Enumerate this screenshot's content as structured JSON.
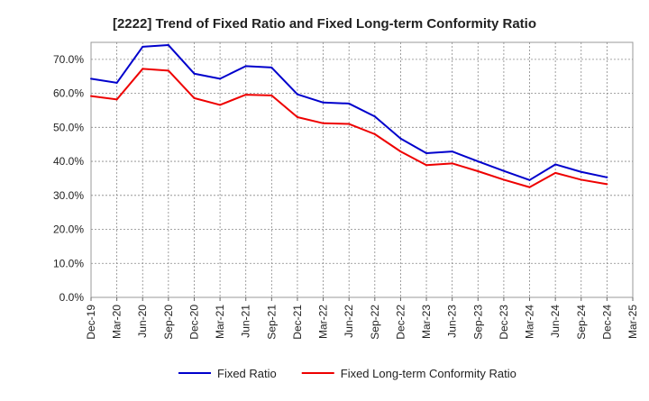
{
  "chart_data": {
    "type": "line",
    "title": "[2222]  Trend of Fixed Ratio and Fixed Long-term Conformity Ratio",
    "xlabel": "",
    "ylabel": "",
    "categories": [
      "Dec-19",
      "Mar-20",
      "Jun-20",
      "Sep-20",
      "Dec-20",
      "Mar-21",
      "Jun-21",
      "Sep-21",
      "Dec-21",
      "Mar-22",
      "Jun-22",
      "Sep-22",
      "Dec-22",
      "Mar-23",
      "Jun-23",
      "Sep-23",
      "Dec-23",
      "Mar-24",
      "Jun-24",
      "Sep-24",
      "Dec-24",
      "Mar-25"
    ],
    "ylim": [
      0,
      75
    ],
    "y_ticks": [
      0,
      10,
      20,
      30,
      40,
      50,
      60,
      70
    ],
    "y_tick_labels": [
      "0.0%",
      "10.0%",
      "20.0%",
      "30.0%",
      "40.0%",
      "50.0%",
      "60.0%",
      "70.0%"
    ],
    "grid": true,
    "legend_position": "bottom",
    "series": [
      {
        "name": "Fixed Ratio",
        "color": "#0000cc",
        "values": [
          64.3,
          63.1,
          73.7,
          74.2,
          65.8,
          64.3,
          68.0,
          67.6,
          59.7,
          57.3,
          57.0,
          53.2,
          46.7,
          42.4,
          42.9,
          40.0,
          37.2,
          34.5,
          39.1,
          36.9,
          35.3,
          null
        ]
      },
      {
        "name": "Fixed Long-term Conformity Ratio",
        "color": "#ee0000",
        "values": [
          59.2,
          58.2,
          67.2,
          66.7,
          58.6,
          56.6,
          59.6,
          59.4,
          53.0,
          51.2,
          51.0,
          48.0,
          42.9,
          38.9,
          39.4,
          37.1,
          34.6,
          32.4,
          36.6,
          34.6,
          33.3,
          null
        ]
      }
    ]
  }
}
